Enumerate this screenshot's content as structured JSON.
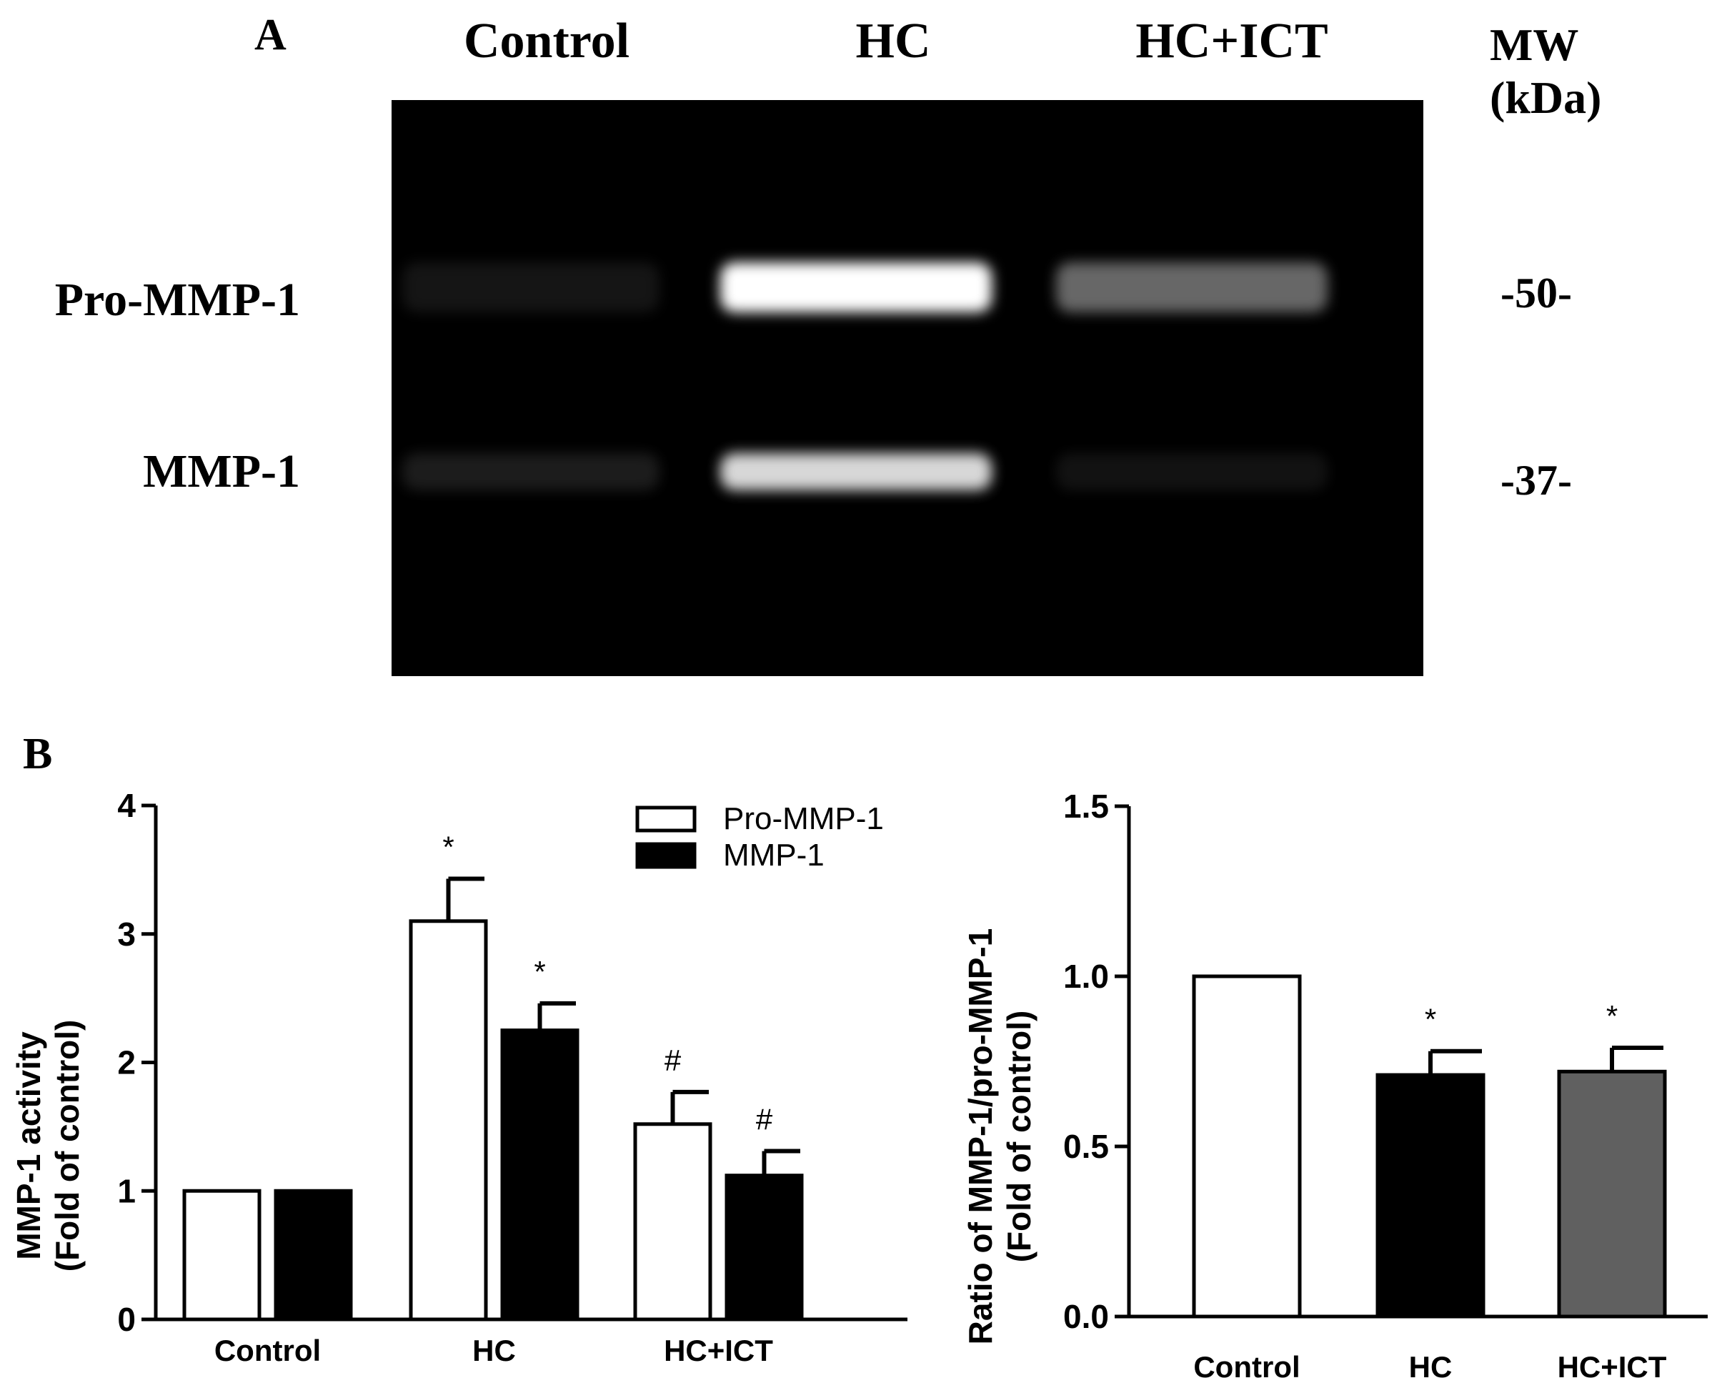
{
  "panel_a": {
    "letter": "A",
    "lanes": [
      "Control",
      "HC",
      "HC+ICT"
    ],
    "mw_header": "MW\n(kDa)",
    "bands": [
      {
        "label": "Pro-MMP-1",
        "mw": "-50-",
        "intensity": [
          0.12,
          1.0,
          0.55
        ]
      },
      {
        "label": "MMP-1",
        "mw": "-37-",
        "intensity": [
          0.18,
          0.9,
          0.1
        ]
      }
    ]
  },
  "panel_b": {
    "letter": "B"
  },
  "chart_data": [
    {
      "type": "bar",
      "title": "",
      "ylabel_line1": "MMP-1 activity",
      "ylabel_line2": "(Fold of control)",
      "xlabel": "",
      "categories": [
        "Control",
        "HC",
        "HC+ICT"
      ],
      "ylim": [
        0,
        4
      ],
      "yticks": [
        "0",
        "1",
        "2",
        "3",
        "4"
      ],
      "legend_position": "top-right",
      "series": [
        {
          "name": "Pro-MMP-1",
          "fill": "#ffffff",
          "values": [
            1.0,
            3.1,
            1.52
          ],
          "errors": [
            0,
            0.33,
            0.25
          ],
          "marks": [
            "",
            "*",
            "#"
          ]
        },
        {
          "name": "MMP-1",
          "fill": "#000000",
          "values": [
            1.0,
            2.25,
            1.12
          ],
          "errors": [
            0,
            0.21,
            0.19
          ],
          "marks": [
            "",
            "*",
            "#"
          ]
        }
      ]
    },
    {
      "type": "bar",
      "title": "",
      "ylabel_line1": "Ratio of MMP-1/pro-MMP-1",
      "ylabel_line2": "(Fold of control)",
      "xlabel": "",
      "categories": [
        "Control",
        "HC",
        "HC+ICT"
      ],
      "ylim": [
        0,
        1.5
      ],
      "yticks": [
        "0.0",
        "0.5",
        "1.0",
        "1.5"
      ],
      "values": [
        1.0,
        0.71,
        0.72
      ],
      "errors": [
        0,
        0.07,
        0.07
      ],
      "fills": [
        "#ffffff",
        "#000000",
        "#606060"
      ],
      "marks": [
        "",
        "*",
        "*"
      ]
    }
  ]
}
